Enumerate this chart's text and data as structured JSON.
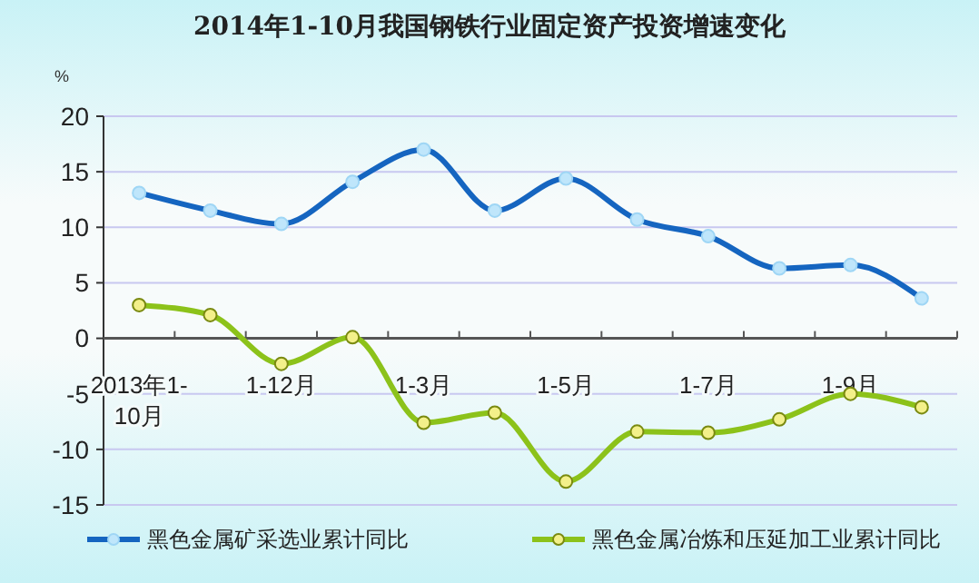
{
  "chart_data": {
    "type": "line",
    "title": "2014年1-10月我国钢铁行业固定资产投资增速变化",
    "ylabel": "%",
    "categories": [
      "2013年1-10月",
      null,
      "1-12月",
      null,
      "1-3月",
      null,
      "1-5月",
      null,
      "1-7月",
      null,
      "1-9月",
      null
    ],
    "series": [
      {
        "name": "黑色金属矿采选业累计同比",
        "color": "#1565c0",
        "values": [
          13.1,
          11.5,
          10.3,
          14.1,
          17.0,
          11.5,
          14.4,
          10.7,
          9.2,
          6.3,
          6.6,
          3.6
        ]
      },
      {
        "name": "黑色金属冶炼和压延加工业累计同比",
        "color": "#8cc21a",
        "values": [
          3.0,
          2.1,
          -2.3,
          0.1,
          -7.6,
          -6.7,
          -12.9,
          -8.4,
          -8.5,
          -7.3,
          -5.0,
          -6.2
        ]
      }
    ],
    "ylim": [
      -15,
      20
    ],
    "yticks": [
      -15,
      -10,
      -5,
      0,
      5,
      10,
      15,
      20
    ],
    "grid": "y",
    "legend": "bottom",
    "marker": "circle",
    "line_style": "solid"
  }
}
